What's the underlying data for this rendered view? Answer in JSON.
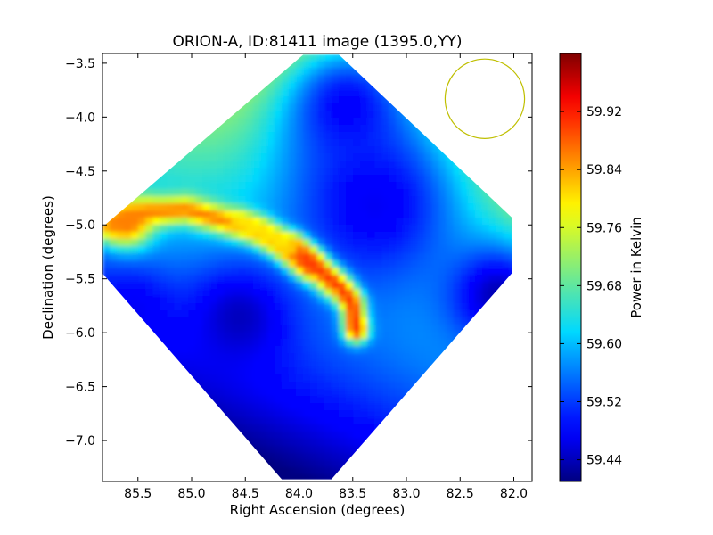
{
  "chart_data": {
    "type": "heatmap",
    "title": "ORION-A, ID:81411 image (1395.0,YY)",
    "xlabel": "Right Ascension (degrees)",
    "ylabel": "Declination (degrees)",
    "colorbar_label": "Power in Kelvin",
    "colormap": "jet",
    "xlim": [
      85.83,
      81.83
    ],
    "ylim": [
      -7.38,
      -3.41
    ],
    "x_ticks": [
      85.5,
      85.0,
      84.5,
      84.0,
      83.5,
      83.0,
      82.5,
      82.0
    ],
    "x_tick_labels": [
      "85.5",
      "85.0",
      "84.5",
      "84.0",
      "83.5",
      "83.0",
      "82.5",
      "82.0"
    ],
    "y_ticks": [
      -3.5,
      -4.0,
      -4.5,
      -5.0,
      -5.5,
      -6.0,
      -6.5,
      -7.0
    ],
    "y_tick_labels": [
      "−3.5",
      "−4.0",
      "−4.5",
      "−5.0",
      "−5.5",
      "−6.0",
      "−6.5",
      "−7.0"
    ],
    "colorbar_range": [
      59.41,
      60.0
    ],
    "colorbar_ticks": [
      59.44,
      59.52,
      59.6,
      59.68,
      59.76,
      59.84,
      59.92
    ],
    "colorbar_tick_labels": [
      "59.44",
      "59.52",
      "59.60",
      "59.68",
      "59.76",
      "59.84",
      "59.92"
    ],
    "map_footprint": [
      [
        83.96,
        -3.42
      ],
      [
        83.63,
        -3.42
      ],
      [
        82.02,
        -4.93
      ],
      [
        82.02,
        -5.45
      ],
      [
        83.7,
        -7.36
      ],
      [
        84.16,
        -7.36
      ],
      [
        85.83,
        -5.45
      ],
      [
        85.83,
        -5.02
      ]
    ],
    "beam_circle": {
      "center": [
        82.27,
        -3.83
      ],
      "radius_deg": 0.37,
      "color": "#bfbf00"
    },
    "features": [
      {
        "kind": "ridge",
        "level": 59.86,
        "width": 0.09,
        "path": [
          [
            85.75,
            -5.0
          ],
          [
            85.4,
            -4.88
          ],
          [
            85.05,
            -4.86
          ],
          [
            84.7,
            -4.96
          ],
          [
            84.4,
            -5.05
          ],
          [
            84.1,
            -5.22
          ],
          [
            83.9,
            -5.37
          ]
        ]
      },
      {
        "kind": "ridge",
        "level": 59.9,
        "width": 0.08,
        "path": [
          [
            84.05,
            -5.22
          ],
          [
            83.9,
            -5.35
          ],
          [
            83.75,
            -5.47
          ],
          [
            83.6,
            -5.6
          ],
          [
            83.5,
            -5.75
          ],
          [
            83.47,
            -5.98
          ]
        ]
      },
      {
        "kind": "ridge",
        "level": 59.8,
        "width": 0.07,
        "path": [
          [
            84.55,
            -4.97
          ],
          [
            84.3,
            -5.08
          ],
          [
            84.1,
            -5.2
          ]
        ]
      },
      {
        "kind": "peak",
        "level": 59.97,
        "center": [
          83.93,
          -5.33
        ],
        "radius": 0.1
      },
      {
        "kind": "peak",
        "level": 59.96,
        "center": [
          83.7,
          -5.52
        ],
        "radius": 0.1
      },
      {
        "kind": "peak",
        "level": 59.9,
        "center": [
          83.52,
          -5.67
        ],
        "radius": 0.07
      },
      {
        "kind": "peak",
        "level": 59.87,
        "center": [
          83.47,
          -5.93
        ],
        "radius": 0.06
      },
      {
        "kind": "peak",
        "level": 59.88,
        "center": [
          85.6,
          -4.98
        ],
        "radius": 0.16
      },
      {
        "kind": "trough",
        "level": 59.44,
        "center": [
          84.55,
          -5.86
        ],
        "radius": 0.35
      },
      {
        "kind": "trough",
        "level": 59.43,
        "center": [
          82.15,
          -5.65
        ],
        "radius": 0.35
      },
      {
        "kind": "trough",
        "level": 59.47,
        "center": [
          83.3,
          -4.8
        ],
        "radius": 0.7
      },
      {
        "kind": "trough",
        "level": 59.48,
        "center": [
          83.55,
          -3.9
        ],
        "radius": 0.45
      },
      {
        "kind": "trough",
        "level": 59.47,
        "center": [
          85.55,
          -5.8
        ],
        "radius": 0.25
      }
    ],
    "grid": false
  }
}
